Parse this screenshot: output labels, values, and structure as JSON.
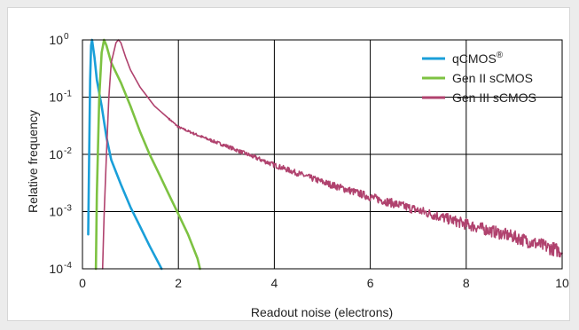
{
  "chart_data": {
    "type": "line",
    "xlabel": "Readout noise (electrons)",
    "ylabel": "Relative frequency",
    "xlim": [
      0,
      10
    ],
    "ylim_log10": [
      -4,
      0
    ],
    "yscale": "log",
    "grid": true,
    "legend_position": "top-right",
    "x_ticks": [
      {
        "label": "0",
        "value": 0
      },
      {
        "label": "2",
        "value": 2
      },
      {
        "label": "4",
        "value": 4
      },
      {
        "label": "6",
        "value": 6
      },
      {
        "label": "8",
        "value": 8
      },
      {
        "label": "10",
        "value": 10
      }
    ],
    "y_ticks": [
      {
        "base": "10",
        "exp": "0",
        "value": 1
      },
      {
        "base": "10",
        "exp": "-1",
        "value": 0.1
      },
      {
        "base": "10",
        "exp": "-2",
        "value": 0.01
      },
      {
        "base": "10",
        "exp": "-3",
        "value": 0.001
      },
      {
        "base": "10",
        "exp": "-4",
        "value": 0.0001
      }
    ],
    "series": [
      {
        "name": "qCMOS®",
        "name_main": "qCMOS",
        "name_sup": "®",
        "color": "#1a9fd9",
        "noisy": false,
        "x": [
          0.12,
          0.14,
          0.16,
          0.18,
          0.2,
          0.25,
          0.3,
          0.4,
          0.5,
          0.6,
          0.8,
          1.0,
          1.2,
          1.4,
          1.6,
          1.65
        ],
        "y": [
          0.0004,
          0.01,
          0.2,
          0.8,
          1.0,
          0.5,
          0.2,
          0.07,
          0.02,
          0.008,
          0.003,
          0.0012,
          0.00055,
          0.00025,
          0.00012,
          0.0001
        ]
      },
      {
        "name": "Gen II sCMOS",
        "color": "#7dc242",
        "noisy": false,
        "x": [
          0.28,
          0.3,
          0.35,
          0.4,
          0.45,
          0.5,
          0.6,
          0.8,
          1.0,
          1.2,
          1.4,
          1.6,
          1.8,
          2.0,
          2.2,
          2.4,
          2.45
        ],
        "y": [
          0.0001,
          0.002,
          0.1,
          0.6,
          1.0,
          0.8,
          0.4,
          0.18,
          0.07,
          0.025,
          0.01,
          0.0045,
          0.002,
          0.0009,
          0.0004,
          0.00015,
          0.0001
        ]
      },
      {
        "name": "Gen III sCMOS",
        "color": "#b0426e",
        "noisy": true,
        "x": [
          0.42,
          0.45,
          0.5,
          0.55,
          0.6,
          0.7,
          0.75,
          0.8,
          0.9,
          1.0,
          1.2,
          1.5,
          2.0,
          2.5,
          3.0,
          4.0,
          5.0,
          6.0,
          7.0,
          8.0,
          9.0,
          10.0
        ],
        "y": [
          0.0001,
          0.0008,
          0.01,
          0.1,
          0.4,
          0.9,
          1.0,
          0.9,
          0.5,
          0.3,
          0.15,
          0.07,
          0.03,
          0.02,
          0.014,
          0.0065,
          0.0033,
          0.0018,
          0.00105,
          0.0006,
          0.00036,
          0.0002
        ]
      }
    ]
  }
}
